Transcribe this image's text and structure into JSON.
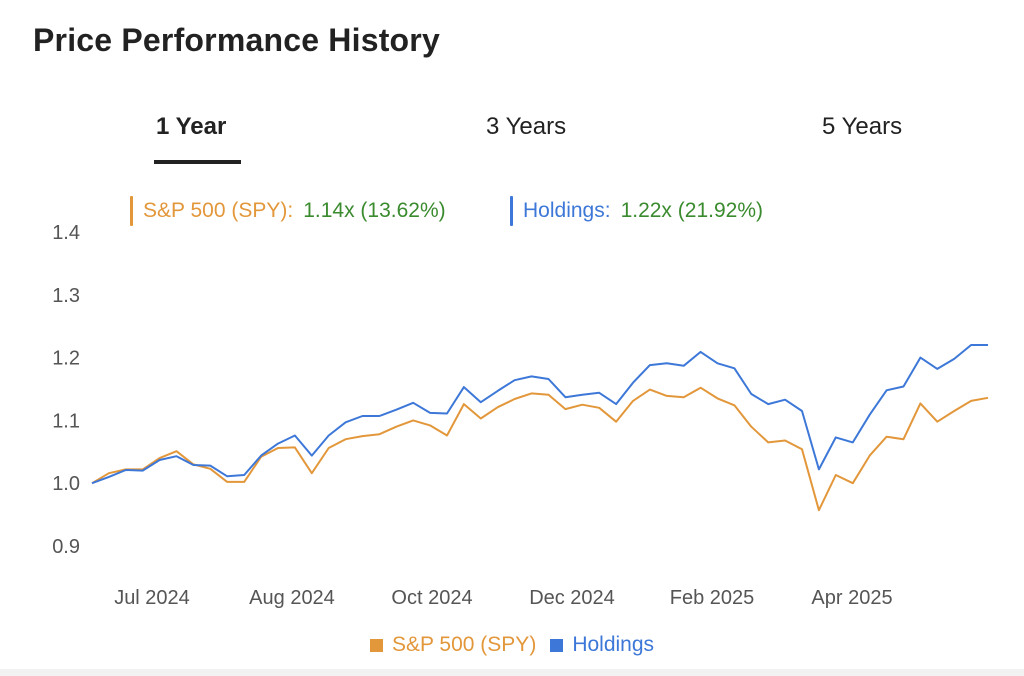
{
  "header": {
    "title": "Price Performance History"
  },
  "tabs": [
    {
      "label": "1 Year"
    },
    {
      "label": "3 Years"
    },
    {
      "label": "5 Years"
    }
  ],
  "summary": {
    "spy": {
      "label": "S&P 500 (SPY):",
      "value": "1.14x (13.62%)"
    },
    "holdings": {
      "label": "Holdings:",
      "value": "1.22x (21.92%)"
    }
  },
  "colors": {
    "spy": "#e3973b",
    "holdings": "#3d78d8",
    "positive": "#3a8a2e"
  },
  "legend": [
    {
      "label": "S&P 500 (SPY)",
      "color": "#e3973b"
    },
    {
      "label": "Holdings",
      "color": "#3d78d8"
    }
  ],
  "chart_data": {
    "type": "line",
    "y_ticks": [
      "1.4",
      "1.3",
      "1.2",
      "1.1",
      "1.0",
      "0.9"
    ],
    "ylim": [
      0.9,
      1.4
    ],
    "x_ticks": [
      "Jul 2024",
      "Aug 2024",
      "Oct 2024",
      "Dec 2024",
      "Feb 2025",
      "Apr 2025"
    ],
    "grid": false,
    "legend_position": "bottom",
    "series": [
      {
        "name": "S&P 500 (SPY)",
        "values": [
          1.0,
          1.016,
          1.022,
          1.022,
          1.04,
          1.051,
          1.03,
          1.023,
          1.002,
          1.002,
          1.042,
          1.056,
          1.057,
          1.016,
          1.056,
          1.07,
          1.075,
          1.078,
          1.09,
          1.1,
          1.092,
          1.076,
          1.126,
          1.103,
          1.121,
          1.134,
          1.143,
          1.141,
          1.118,
          1.125,
          1.12,
          1.098,
          1.131,
          1.149,
          1.139,
          1.137,
          1.152,
          1.135,
          1.124,
          1.09,
          1.065,
          1.068,
          1.054,
          0.957,
          1.013,
          1.0,
          1.044,
          1.074,
          1.07,
          1.127,
          1.098,
          1.115,
          1.131,
          1.136
        ]
      },
      {
        "name": "Holdings",
        "values": [
          1.0,
          1.01,
          1.021,
          1.02,
          1.037,
          1.043,
          1.029,
          1.028,
          1.011,
          1.013,
          1.044,
          1.063,
          1.076,
          1.044,
          1.076,
          1.097,
          1.107,
          1.107,
          1.117,
          1.128,
          1.112,
          1.111,
          1.153,
          1.129,
          1.147,
          1.164,
          1.17,
          1.166,
          1.137,
          1.141,
          1.144,
          1.126,
          1.16,
          1.188,
          1.191,
          1.187,
          1.209,
          1.191,
          1.183,
          1.142,
          1.126,
          1.133,
          1.115,
          1.022,
          1.073,
          1.065,
          1.109,
          1.148,
          1.154,
          1.2,
          1.182,
          1.198,
          1.22,
          1.22
        ]
      }
    ]
  }
}
